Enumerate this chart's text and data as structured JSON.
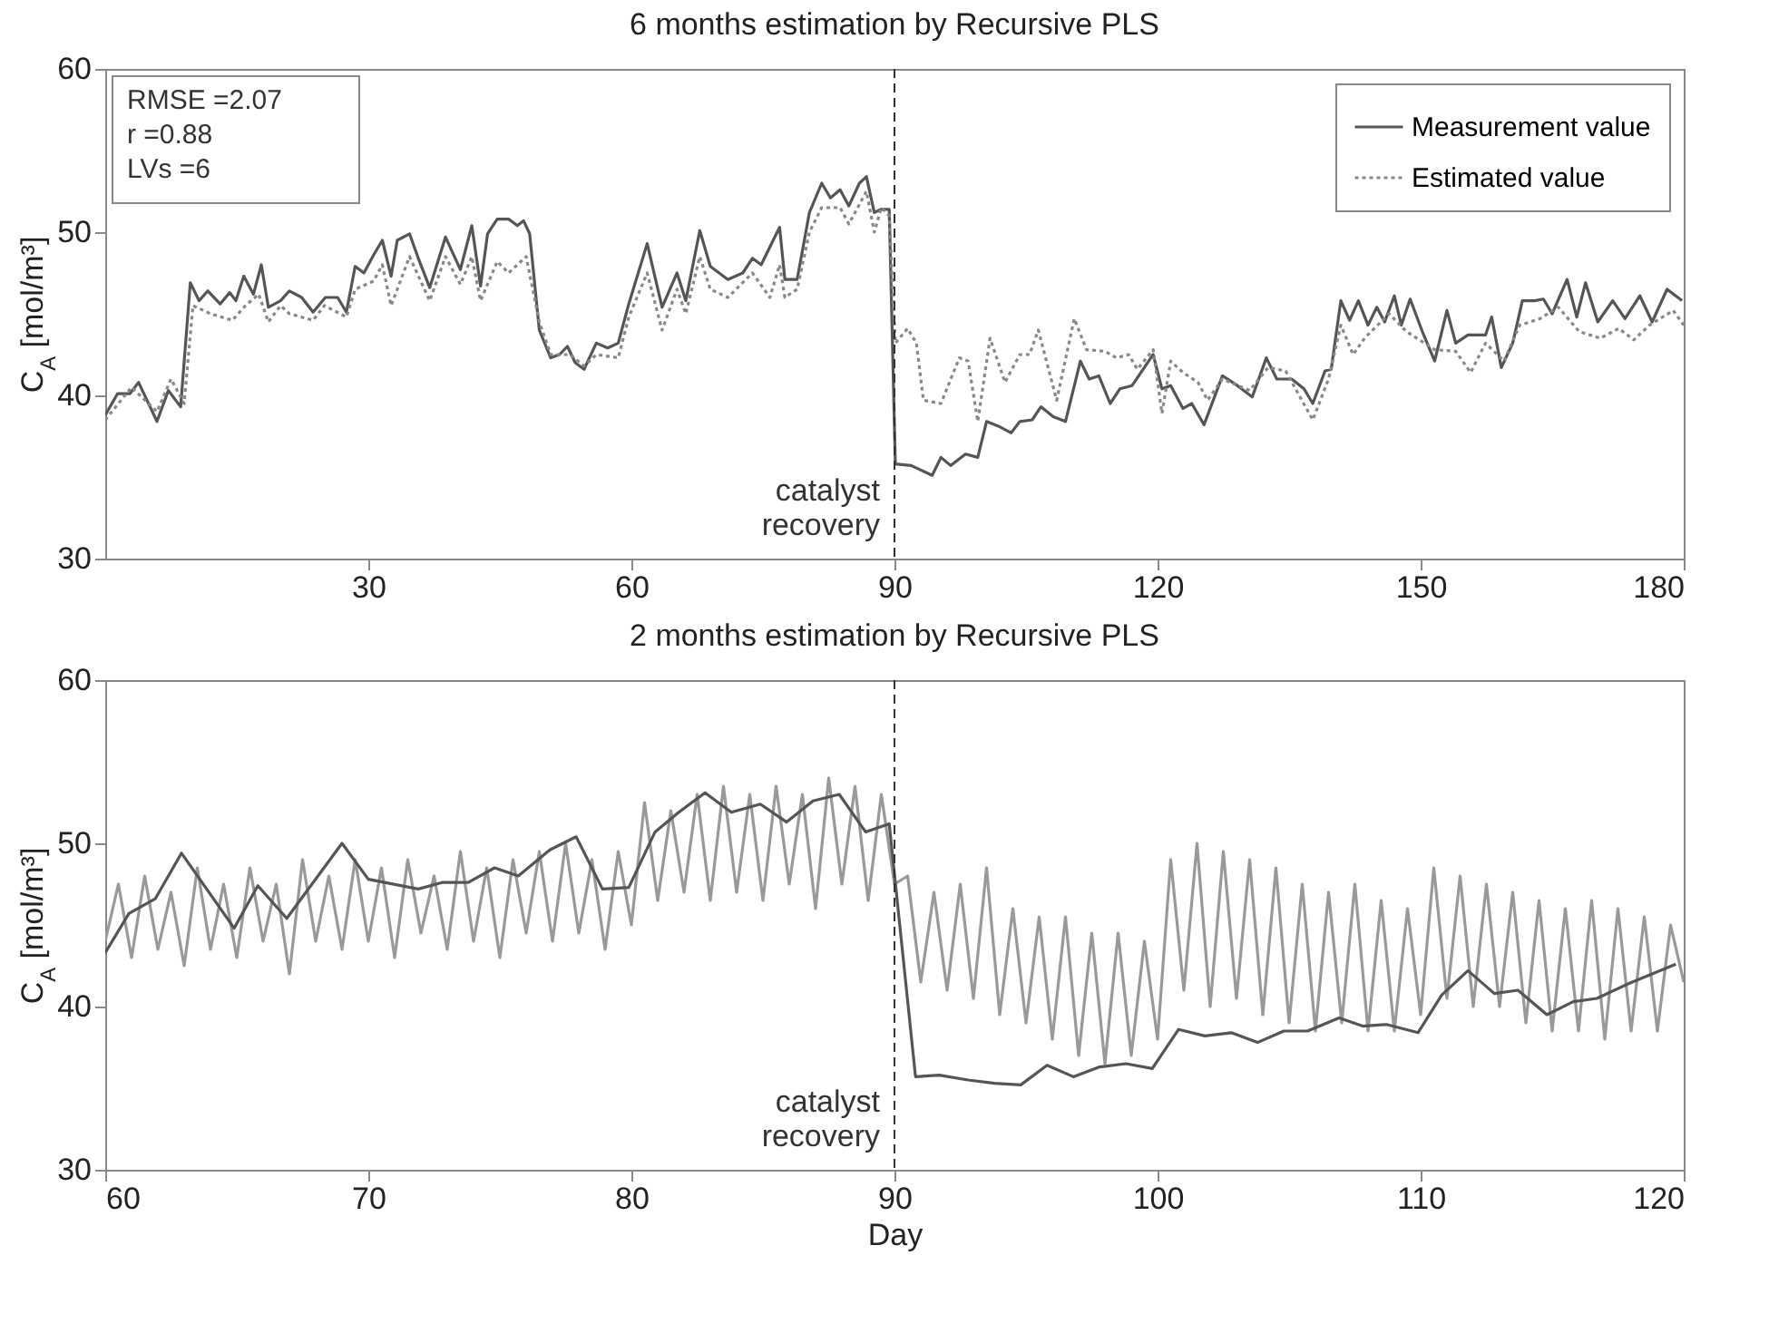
{
  "chart_data": [
    {
      "type": "line",
      "title": "6 months estimation by Recursive PLS",
      "ylabel": "C$_{A}$ [mol/m³]",
      "xlim": [
        0,
        180
      ],
      "xticks": [
        30,
        60,
        90,
        120,
        150,
        180
      ],
      "ylim": [
        30,
        60
      ],
      "yticks": [
        30,
        40,
        50,
        60
      ],
      "legend": "top right",
      "annotations": [
        "RMSE =2.07",
        "r =0.88",
        "LVs =6"
      ],
      "ref_lines": [
        {
          "axis": "x",
          "value": 90,
          "label": "catalyst\nrecovery",
          "line_style": "dashed",
          "color": "#333333"
        }
      ],
      "series": [
        {
          "name": "Measurement value",
          "color": "#555555",
          "line_style": "solid",
          "x": [
            0,
            1.4,
            2.8,
            3.8,
            5.9,
            7.2,
            8.6,
            9.7,
            10.7,
            11.7,
            13.1,
            14.2,
            14.9,
            15.8,
            16.9,
            17.8,
            18.6,
            20,
            21,
            22.4,
            23.7,
            25.1,
            26.5,
            27.5,
            28.5,
            29.5,
            30.6,
            31.6,
            32.6,
            33.3,
            34.7,
            35.7,
            37,
            38.8,
            40.5,
            41.8,
            42.8,
            43.6,
            44.7,
            46,
            47,
            47.7,
            48.4,
            49.5,
            50.8,
            51.8,
            52.7,
            53.6,
            54.6,
            56,
            57.3,
            58.5,
            59.7,
            61.8,
            63.5,
            65.2,
            66.2,
            67.8,
            69,
            71,
            72.7,
            73.8,
            74.8,
            75.8,
            76.9,
            77.5,
            78.9,
            80.3,
            81.7,
            82.7,
            83.8,
            84.8,
            86,
            86.8,
            87.7,
            88.5,
            89.4,
            90.1,
            91.9,
            94.3,
            95.3,
            96.4,
            98.1,
            99.5,
            100.5,
            101.9,
            103.3,
            104.3,
            105.7,
            106.7,
            108.1,
            109.5,
            111.2,
            112.2,
            113.3,
            114.6,
            115.7,
            117.1,
            119.5,
            120.5,
            121.5,
            122.9,
            123.9,
            125.3,
            127.4,
            129.1,
            130.8,
            132.4,
            133.6,
            135.3,
            136.7,
            137.7,
            139.1,
            139.8,
            140.9,
            141.9,
            142.9,
            144,
            145,
            145.9,
            147,
            147.8,
            148.8,
            150.2,
            151.6,
            153,
            154,
            155.4,
            157.4,
            158.1,
            159.2,
            160.5,
            161.6,
            163,
            164,
            165,
            166.7,
            167.8,
            168.8,
            170.2,
            171.9,
            173.3,
            175,
            176.4,
            178.1,
            179.8
          ],
          "values": [
            38.8,
            40.1,
            40.1,
            40.8,
            38.4,
            40.3,
            39.3,
            46.9,
            45.8,
            46.4,
            45.6,
            46.3,
            45.8,
            47.3,
            46.2,
            48.0,
            45.4,
            45.8,
            46.4,
            46.0,
            45.1,
            46.0,
            46.0,
            45.1,
            47.9,
            47.5,
            48.6,
            49.5,
            47.3,
            49.5,
            49.9,
            48.4,
            46.6,
            49.7,
            47.7,
            50.4,
            46.7,
            49.9,
            50.8,
            50.8,
            50.4,
            50.7,
            49.9,
            44.0,
            42.3,
            42.5,
            43.0,
            42.0,
            41.6,
            43.2,
            42.9,
            43.2,
            45.6,
            49.3,
            45.4,
            47.5,
            45.8,
            50.1,
            47.9,
            47.1,
            47.5,
            48.4,
            48.0,
            49.1,
            50.3,
            47.1,
            47.1,
            51.2,
            53.0,
            52.1,
            52.6,
            51.6,
            53.0,
            53.4,
            51.2,
            51.4,
            51.4,
            35.8,
            35.7,
            35.1,
            36.2,
            35.7,
            36.4,
            36.2,
            38.4,
            38.1,
            37.7,
            38.4,
            38.5,
            39.3,
            38.7,
            38.4,
            42.1,
            41.0,
            41.2,
            39.5,
            40.4,
            40.6,
            42.5,
            40.4,
            40.6,
            39.2,
            39.5,
            38.2,
            41.2,
            40.6,
            39.9,
            42.3,
            41.0,
            41.0,
            40.4,
            39.5,
            41.5,
            41.6,
            45.8,
            44.6,
            45.8,
            44.3,
            45.4,
            44.5,
            46.1,
            44.3,
            45.9,
            43.9,
            42.1,
            45.2,
            43.2,
            43.7,
            43.7,
            44.8,
            41.7,
            43.2,
            45.8,
            45.8,
            45.9,
            45.0,
            47.1,
            44.8,
            46.9,
            44.5,
            45.8,
            44.7,
            46.1,
            44.5,
            46.5,
            45.8
          ]
        },
        {
          "name": "Estimated value",
          "color": "#888888",
          "line_style": "dotted",
          "x": [
            0,
            3,
            5.9,
            7.5,
            9,
            10,
            12,
            14.5,
            16,
            17.5,
            18.6,
            20,
            21,
            23.7,
            25,
            27.5,
            28.5,
            30.6,
            31.6,
            32.6,
            34.7,
            37,
            38.8,
            40.5,
            41.8,
            42.8,
            44.7,
            46,
            48,
            49.5,
            50.8,
            53,
            54.6,
            56,
            58.5,
            59.7,
            61.8,
            63.5,
            65.2,
            66.2,
            67.8,
            69,
            71,
            73.8,
            75.8,
            76.9,
            77.5,
            78.9,
            80.3,
            81.7,
            83.8,
            84.8,
            86.8,
            87.7,
            88.5,
            89.4,
            90.1,
            91.5,
            92.5,
            93.3,
            95.3,
            97.4,
            98.4,
            99.5,
            100.9,
            102.6,
            104.3,
            105.4,
            106.4,
            108.5,
            110.5,
            111.9,
            114,
            115.3,
            116.7,
            117.7,
            119.5,
            120.5,
            121.5,
            122.9,
            124.6,
            125.7,
            127.4,
            130.5,
            132.6,
            134.6,
            137.7,
            139.5,
            140.9,
            142.3,
            143.6,
            146.4,
            148.4,
            151.6,
            154,
            155.7,
            157.4,
            159.5,
            161.3,
            163.6,
            165.7,
            168.1,
            170.5,
            172.6,
            174.3,
            176.1,
            178.8,
            180
          ],
          "values": [
            38.5,
            40.5,
            39.0,
            41.0,
            39.5,
            45.5,
            45.0,
            44.6,
            45.5,
            46.2,
            44.5,
            45.5,
            45.0,
            44.6,
            45.5,
            44.8,
            46.5,
            47.0,
            48.0,
            45.5,
            48.5,
            45.8,
            48.5,
            46.8,
            48.5,
            45.8,
            48.2,
            47.5,
            48.5,
            44.5,
            42.5,
            42.5,
            41.8,
            42.5,
            42.3,
            44.8,
            47.5,
            44.0,
            46.5,
            45.0,
            48.5,
            46.5,
            46.0,
            47.5,
            46.0,
            48.0,
            46.0,
            46.5,
            50.0,
            51.5,
            51.5,
            50.5,
            52.5,
            50.0,
            51.5,
            51.0,
            43.2,
            44.1,
            43.2,
            39.7,
            39.5,
            42.3,
            42.1,
            38.4,
            43.5,
            40.8,
            42.5,
            42.5,
            44.0,
            39.7,
            44.7,
            42.8,
            42.7,
            42.3,
            42.5,
            41.6,
            42.8,
            38.9,
            42.1,
            41.4,
            40.8,
            39.7,
            41.0,
            40.3,
            41.7,
            41.5,
            38.5,
            41.0,
            44.3,
            42.5,
            43.5,
            45.0,
            43.9,
            42.8,
            42.7,
            41.4,
            43.2,
            42.1,
            44.3,
            44.7,
            45.4,
            43.9,
            43.5,
            44.1,
            43.4,
            44.3,
            45.2,
            44.3
          ]
        }
      ]
    },
    {
      "type": "line",
      "title": "2 months estimation by Recursive PLS",
      "xlabel": "Day",
      "ylabel": "C$_{A}$ [mol/m³]",
      "xlim": [
        60,
        120
      ],
      "xticks": [
        60,
        70,
        80,
        90,
        100,
        110,
        120
      ],
      "ylim": [
        30,
        60
      ],
      "yticks": [
        30,
        40,
        50,
        60
      ],
      "ref_lines": [
        {
          "axis": "x",
          "value": 90,
          "label": "catalyst\nrecovery",
          "line_style": "dashed",
          "color": "#333333"
        }
      ],
      "series": [
        {
          "color": "#999999",
          "line_style": "solid",
          "x": [
            60,
            60.5,
            61,
            61.5,
            62,
            62.5,
            63,
            63.5,
            64,
            64.5,
            65,
            65.5,
            66,
            66.5,
            67,
            67.5,
            68,
            68.5,
            69,
            69.5,
            70,
            70.5,
            71,
            71.5,
            72,
            72.5,
            73,
            73.5,
            74,
            74.5,
            75,
            75.5,
            76,
            76.5,
            77,
            77.5,
            78,
            78.5,
            79,
            79.5,
            80,
            80.5,
            81,
            81.5,
            82,
            82.5,
            83,
            83.5,
            84,
            84.5,
            85,
            85.5,
            86,
            86.5,
            87,
            87.5,
            88,
            88.5,
            89,
            89.5,
            90,
            90.5,
            91,
            91.5,
            92,
            92.5,
            93,
            93.5,
            94,
            94.5,
            95,
            95.5,
            96,
            96.5,
            97,
            97.5,
            98,
            98.5,
            99,
            99.5,
            100,
            100.5,
            101,
            101.5,
            102,
            102.5,
            103,
            103.5,
            104,
            104.5,
            105,
            105.5,
            106,
            106.5,
            107,
            107.5,
            108,
            108.5,
            109,
            109.5,
            110,
            110.5,
            111,
            111.5,
            112,
            112.5,
            113,
            113.5,
            114,
            114.5,
            115,
            115.5,
            116,
            116.5,
            117,
            117.5,
            118,
            118.5,
            119,
            119.5,
            120
          ],
          "values": [
            44.0,
            47.5,
            43.0,
            48.0,
            43.5,
            47.0,
            42.5,
            48.5,
            43.5,
            47.5,
            43.0,
            48.5,
            44.0,
            47.5,
            42.0,
            49.0,
            44.0,
            48.0,
            43.5,
            49.0,
            44.0,
            48.5,
            43.0,
            49.0,
            44.5,
            48.0,
            43.5,
            49.5,
            44.0,
            48.5,
            43.0,
            49.0,
            44.5,
            49.5,
            44.0,
            50.0,
            44.5,
            49.0,
            43.5,
            49.5,
            45.0,
            52.5,
            46.5,
            52.0,
            47.0,
            53.0,
            46.5,
            53.5,
            47.0,
            53.0,
            46.5,
            53.5,
            47.5,
            53.0,
            46.0,
            54.0,
            47.5,
            53.5,
            46.5,
            53.0,
            47.5,
            48.0,
            41.5,
            47.0,
            41.0,
            47.5,
            40.5,
            48.5,
            39.5,
            46.0,
            39.0,
            45.5,
            38.0,
            45.5,
            37.0,
            44.5,
            36.5,
            44.5,
            37.0,
            44.0,
            38.0,
            49.0,
            41.0,
            50.0,
            40.0,
            49.5,
            40.5,
            49.0,
            39.5,
            48.5,
            39.0,
            47.5,
            38.5,
            47.0,
            39.0,
            47.5,
            38.5,
            46.5,
            38.5,
            46.0,
            39.5,
            48.5,
            40.5,
            48.0,
            40.0,
            47.5,
            40.0,
            47.0,
            39.0,
            46.5,
            38.5,
            46.0,
            38.5,
            46.5,
            38.0,
            46.0,
            38.5,
            45.5,
            38.5,
            45.0,
            41.5
          ]
        },
        {
          "color": "#555555",
          "line_style": "solid",
          "x": [
            60,
            60.9,
            61.9,
            62.9,
            64.9,
            65.8,
            66.9,
            69,
            70,
            71.9,
            72.8,
            73.8,
            74.8,
            75.7,
            76.9,
            77.9,
            78.9,
            79.9,
            80.9,
            81.8,
            82.8,
            83.8,
            84.9,
            85.9,
            86.9,
            87.9,
            88.9,
            89.8,
            90.8,
            91.7,
            92.8,
            93.8,
            94.8,
            95.8,
            96.8,
            97.8,
            98.8,
            99.8,
            100.8,
            101.8,
            102.8,
            103.8,
            104.8,
            105.7,
            106.9,
            107.8,
            108.7,
            109.9,
            110.8,
            111.8,
            112.8,
            113.7,
            114.8,
            115.8,
            116.7,
            117.9,
            119.7
          ],
          "values": [
            43.3,
            45.7,
            46.6,
            49.4,
            44.8,
            47.4,
            45.4,
            50.0,
            47.8,
            47.2,
            47.6,
            47.6,
            48.5,
            48.0,
            49.6,
            50.4,
            47.2,
            47.3,
            50.7,
            51.9,
            53.1,
            51.9,
            52.4,
            51.3,
            52.6,
            53.0,
            50.7,
            51.2,
            35.7,
            35.8,
            35.5,
            35.3,
            35.2,
            36.4,
            35.7,
            36.3,
            36.5,
            36.2,
            38.6,
            38.2,
            38.4,
            37.8,
            38.5,
            38.5,
            39.3,
            38.8,
            38.9,
            38.4,
            40.7,
            42.2,
            40.8,
            41.0,
            39.5,
            40.3,
            40.5,
            41.4,
            42.6
          ]
        }
      ]
    }
  ]
}
